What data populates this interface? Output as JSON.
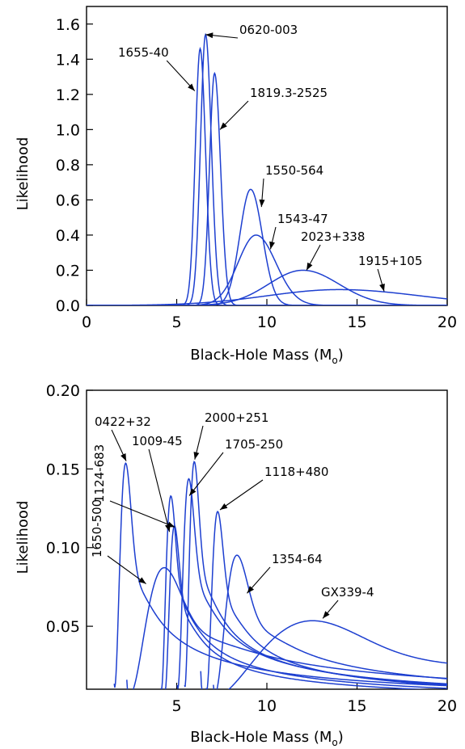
{
  "colors": {
    "curve": "#1d3fd0",
    "axes": "#000000",
    "background": "#ffffff"
  },
  "chart_data": [
    {
      "type": "line",
      "xlabel": "Black-Hole Mass (M",
      "xlabel_sub": "o",
      "xlabel_end": ")",
      "ylabel": "Likelihood",
      "xlim": [
        0,
        20
      ],
      "ylim": [
        0,
        1.7
      ],
      "xticks": [
        0,
        5,
        10,
        15,
        20
      ],
      "yticks": [
        0.0,
        0.2,
        0.4,
        0.6,
        0.8,
        1.0,
        1.2,
        1.4,
        1.6
      ],
      "ytick_labels": [
        "0.0",
        "0.2",
        "0.4",
        "0.6",
        "0.8",
        "1.0",
        "1.2",
        "1.4",
        "1.6"
      ],
      "grid": false,
      "series": [
        {
          "name": "0620-003",
          "shape": "gaussian",
          "peak_x": 6.6,
          "peak_y": 1.54,
          "sigma_left": 0.28,
          "sigma_right": 0.32
        },
        {
          "name": "1655-40",
          "shape": "gaussian",
          "peak_x": 6.3,
          "peak_y": 1.46,
          "sigma_left": 0.27,
          "sigma_right": 0.3
        },
        {
          "name": "1819.3-2525",
          "shape": "gaussian",
          "peak_x": 7.1,
          "peak_y": 1.32,
          "sigma_left": 0.28,
          "sigma_right": 0.33
        },
        {
          "name": "1550-564",
          "shape": "gaussian",
          "peak_x": 9.1,
          "peak_y": 0.66,
          "sigma_left": 0.6,
          "sigma_right": 0.65
        },
        {
          "name": "1543-47",
          "shape": "gaussian",
          "peak_x": 9.4,
          "peak_y": 0.4,
          "sigma_left": 1.0,
          "sigma_right": 1.1
        },
        {
          "name": "2023+338",
          "shape": "gaussian",
          "peak_x": 12.0,
          "peak_y": 0.2,
          "sigma_left": 1.9,
          "sigma_right": 2.0
        },
        {
          "name": "1915+105",
          "shape": "gaussian",
          "peak_x": 14.0,
          "peak_y": 0.09,
          "sigma_left": 4.0,
          "sigma_right": 4.5
        }
      ],
      "annotations": [
        {
          "text": "0620-003",
          "target": [
            6.6,
            1.54
          ]
        },
        {
          "text": "1655-40",
          "target": [
            6.0,
            1.22
          ]
        },
        {
          "text": "1819.3-2525",
          "target": [
            7.4,
            1.0
          ]
        },
        {
          "text": "1550-564",
          "target": [
            9.7,
            0.56
          ]
        },
        {
          "text": "1543-47",
          "target": [
            10.2,
            0.32
          ]
        },
        {
          "text": "2023+338",
          "target": [
            12.2,
            0.2
          ]
        },
        {
          "text": "1915+105",
          "target": [
            16.5,
            0.08
          ]
        }
      ]
    },
    {
      "type": "line",
      "xlabel": "Black-Hole Mass (M",
      "xlabel_sub": "o",
      "xlabel_end": ")",
      "ylabel": "Likelihood",
      "xlim": [
        0,
        20
      ],
      "ylim": [
        0.01,
        0.2
      ],
      "xticks": [
        5,
        10,
        15,
        20
      ],
      "yticks": [
        0.05,
        0.1,
        0.15,
        0.2
      ],
      "ytick_labels": [
        "0.05",
        "0.10",
        "0.15",
        "0.20"
      ],
      "grid": false,
      "series": [
        {
          "name": "0422+32",
          "shape": "skewed",
          "x0": 1.5,
          "peak_x": 2.2,
          "peak_y": 0.155,
          "tail_k": 1.0
        },
        {
          "name": "1650-500",
          "shape": "skewed",
          "x0": 2.2,
          "peak_x": 4.4,
          "peak_y": 0.088,
          "tail_k": 1.0
        },
        {
          "name": "1009-45",
          "shape": "skewed",
          "x0": 4.1,
          "peak_x": 4.7,
          "peak_y": 0.134,
          "tail_k": 1.0
        },
        {
          "name": "1124-683",
          "shape": "skewed",
          "x0": 4.3,
          "peak_x": 4.9,
          "peak_y": 0.115,
          "tail_k": 1.0
        },
        {
          "name": "1705-250",
          "shape": "skewed",
          "x0": 5.0,
          "peak_x": 5.7,
          "peak_y": 0.145,
          "tail_k": 1.0
        },
        {
          "name": "2000+251",
          "shape": "skewed",
          "x0": 5.4,
          "peak_x": 6.0,
          "peak_y": 0.156,
          "tail_k": 1.0
        },
        {
          "name": "1118+480",
          "shape": "skewed",
          "x0": 6.6,
          "peak_x": 7.3,
          "peak_y": 0.124,
          "tail_k": 1.0
        },
        {
          "name": "1354-64",
          "shape": "skewed",
          "x0": 7.0,
          "peak_x": 8.4,
          "peak_y": 0.096,
          "tail_k": 1.0
        },
        {
          "name": "GX339-4",
          "shape": "skewed",
          "x0": 6.3,
          "peak_x": 12.8,
          "peak_y": 0.054,
          "tail_k": 1.0
        }
      ],
      "annotations": [
        {
          "text": "0422+32",
          "target": [
            2.2,
            0.155
          ]
        },
        {
          "text": "1009-45",
          "target": [
            4.6,
            0.11
          ]
        },
        {
          "text": "2000+251",
          "target": [
            6.0,
            0.156
          ]
        },
        {
          "text": "1705-250",
          "target": [
            5.7,
            0.133
          ]
        },
        {
          "text": "1118+480",
          "target": [
            7.4,
            0.124
          ]
        },
        {
          "text": "1124-683",
          "target": [
            4.9,
            0.113
          ]
        },
        {
          "text": "1354-64",
          "target": [
            8.9,
            0.071
          ]
        },
        {
          "text": "GX339-4",
          "target": [
            13.1,
            0.055
          ]
        },
        {
          "text": "1650-500",
          "target": [
            3.3,
            0.077
          ]
        }
      ]
    }
  ]
}
